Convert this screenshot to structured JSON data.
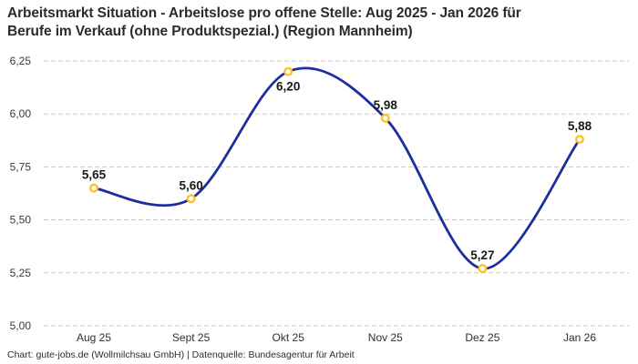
{
  "header": {
    "title_lines": [
      "Arbeitsmarkt Situation - Arbeitslose pro offene Stelle: Aug 2025 - Jan 2026 für",
      "Berufe im Verkauf (ohne Produktspezial.) (Region Mannheim)"
    ]
  },
  "footer": {
    "credit": "Chart: gute-jobs.de (Wollmilchsau GmbH) | Datenquelle: Bundesagentur für Arbeit"
  },
  "chart_data": {
    "type": "line",
    "title": "Arbeitsmarkt Situation - Arbeitslose pro offene Stelle: Aug 2025 - Jan 2026 für Berufe im Verkauf (ohne Produktspezial.) (Region Mannheim)",
    "categories": [
      "Aug 25",
      "Sept 25",
      "Okt 25",
      "Nov 25",
      "Dez 25",
      "Jan 26"
    ],
    "values": [
      5.65,
      5.6,
      6.2,
      5.98,
      5.27,
      5.88
    ],
    "value_labels": [
      "5,65",
      "5,60",
      "6,20",
      "5,98",
      "5,27",
      "5,88"
    ],
    "label_positions": [
      "above",
      "above",
      "below",
      "above",
      "above",
      "above"
    ],
    "y_tick_values": [
      6.25,
      6.0,
      5.75,
      5.5,
      5.25,
      5.0
    ],
    "y_tick_labels": [
      "6,25",
      "6,00",
      "5,75",
      "5,50",
      "5,25",
      "5,00"
    ],
    "ylim": [
      5.0,
      6.25
    ],
    "xlabel": "",
    "ylabel": "",
    "grid": "horizontal-dashed",
    "legend_position": "none",
    "curve": "smooth",
    "colors": {
      "line": "#1e2f9d",
      "marker_ring": "#ffc224",
      "marker_fill": "#ffffff",
      "grid": "#c8c8c8",
      "point_label": "#1a1a1a",
      "tick_label": "#3a3a3a",
      "title": "#2b2b2b"
    }
  }
}
